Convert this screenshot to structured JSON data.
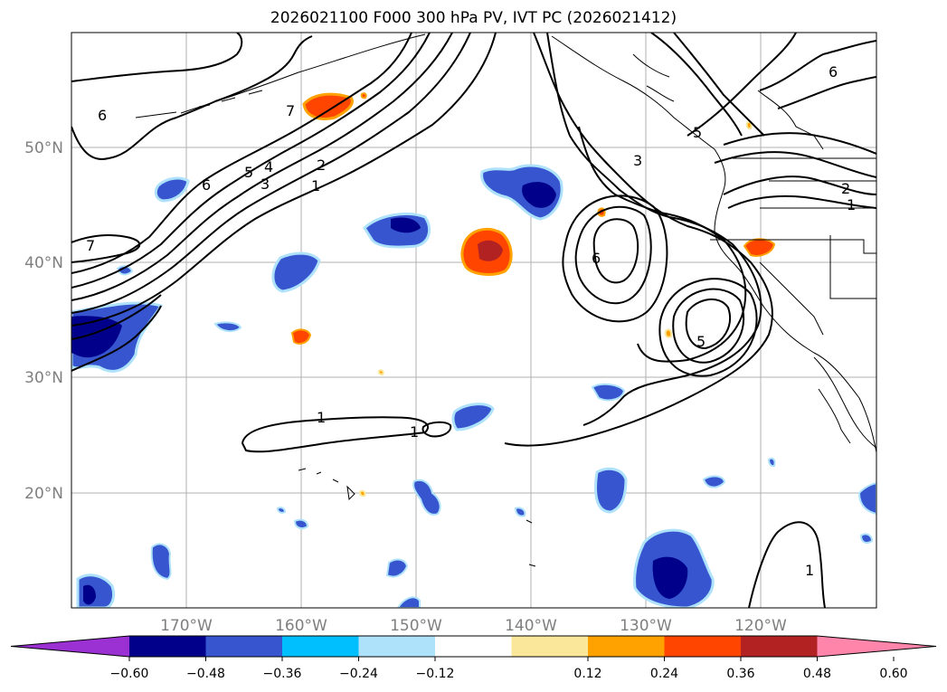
{
  "title": "2026021100 F000 300 hPa PV, IVT PC (2026021412)",
  "lat_labels": [
    "50°N",
    "40°N",
    "30°N",
    "20°N"
  ],
  "lon_labels": [
    "170°W",
    "160°W",
    "150°W",
    "140°W",
    "130°W",
    "120°W"
  ],
  "contour_labels": [
    "6",
    "7",
    "5",
    "4",
    "3",
    "2",
    "1",
    "7",
    "1",
    "1",
    "6",
    "3",
    "5",
    "2",
    "1",
    "5",
    "6",
    "1"
  ],
  "colorbar": {
    "ticks": [
      "−0.60",
      "−0.48",
      "−0.36",
      "−0.24",
      "−0.12",
      "0.12",
      "0.24",
      "0.36",
      "0.48",
      "0.60"
    ],
    "colors": [
      "#9b30d3",
      "#00008b",
      "#3655cf",
      "#00bfff",
      "#aee2fb",
      "#ffffff",
      "#fbe79a",
      "#ffa200",
      "#ff4500",
      "#b22222",
      "#ff85ab"
    ]
  },
  "fill_colors": {
    "neg_light": "#aee2fb",
    "neg_mid": "#00bfff",
    "neg_blue": "#3655cf",
    "neg_dark": "#00008b",
    "pos_yellow": "#fbe79a",
    "pos_orange": "#ffa200",
    "pos_red": "#ff4500",
    "pos_dark": "#b22222"
  }
}
